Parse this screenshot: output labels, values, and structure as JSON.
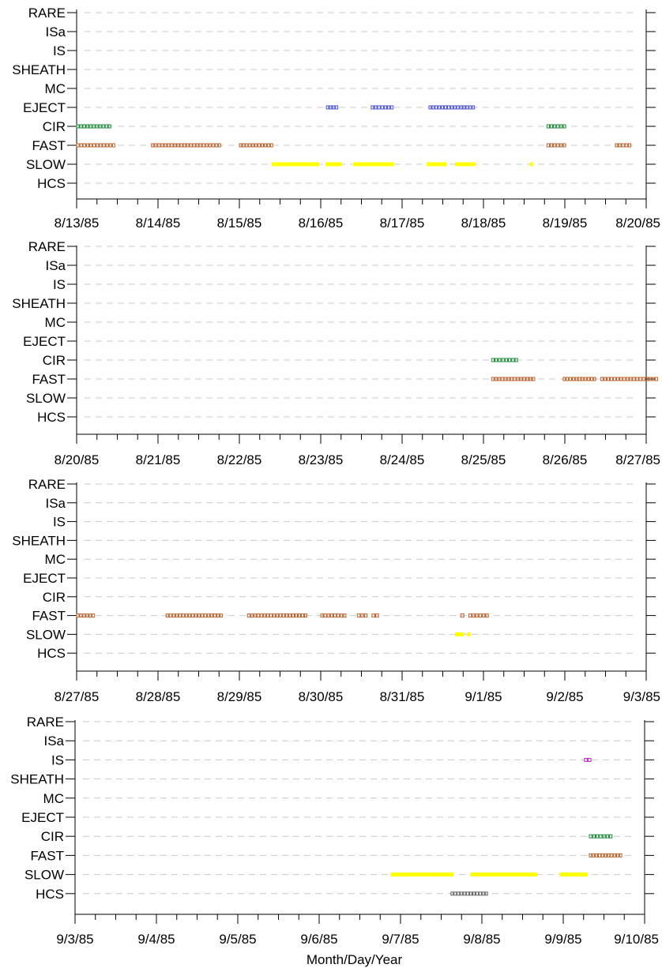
{
  "chart_data": [
    {
      "type": "timeline",
      "categories": [
        "RARE",
        "ISa",
        "IS",
        "SHEATH",
        "MC",
        "EJECT",
        "CIR",
        "FAST",
        "SLOW",
        "HCS"
      ],
      "x_ticks": [
        "8/13/85",
        "8/14/85",
        "8/15/85",
        "8/16/85",
        "8/17/85",
        "8/18/85",
        "8/19/85",
        "8/20/85"
      ],
      "xlim": [
        "8/13/85",
        "8/20/85"
      ],
      "grid": true,
      "events": [
        {
          "category": "EJECT",
          "start": 3.07,
          "end": 3.22
        },
        {
          "category": "EJECT",
          "start": 3.62,
          "end": 3.9
        },
        {
          "category": "EJECT",
          "start": 4.33,
          "end": 4.9
        },
        {
          "category": "CIR",
          "start": 0.0,
          "end": 0.43
        },
        {
          "category": "CIR",
          "start": 5.78,
          "end": 6.02
        },
        {
          "category": "FAST",
          "start": 0.0,
          "end": 0.48
        },
        {
          "category": "FAST",
          "start": 0.92,
          "end": 1.78
        },
        {
          "category": "FAST",
          "start": 2.0,
          "end": 2.42
        },
        {
          "category": "FAST",
          "start": 5.78,
          "end": 6.02
        },
        {
          "category": "FAST",
          "start": 6.62,
          "end": 6.82
        },
        {
          "category": "SLOW",
          "start": 2.4,
          "end": 2.98
        },
        {
          "category": "SLOW",
          "start": 3.06,
          "end": 3.26
        },
        {
          "category": "SLOW",
          "start": 3.4,
          "end": 3.9
        },
        {
          "category": "SLOW",
          "start": 4.3,
          "end": 4.55
        },
        {
          "category": "SLOW",
          "start": 4.65,
          "end": 4.9
        },
        {
          "category": "SLOW",
          "start": 5.57,
          "end": 5.61
        }
      ]
    },
    {
      "type": "timeline",
      "categories": [
        "RARE",
        "ISa",
        "IS",
        "SHEATH",
        "MC",
        "EJECT",
        "CIR",
        "FAST",
        "SLOW",
        "HCS"
      ],
      "x_ticks": [
        "8/20/85",
        "8/21/85",
        "8/22/85",
        "8/23/85",
        "8/24/85",
        "8/25/85",
        "8/26/85",
        "8/27/85"
      ],
      "xlim": [
        "8/20/85",
        "8/27/85"
      ],
      "grid": true,
      "events": [
        {
          "category": "CIR",
          "start": 5.1,
          "end": 5.43
        },
        {
          "category": "FAST",
          "start": 5.1,
          "end": 5.64
        },
        {
          "category": "FAST",
          "start": 5.98,
          "end": 6.39
        },
        {
          "category": "FAST",
          "start": 6.44,
          "end": 7.15
        }
      ]
    },
    {
      "type": "timeline",
      "categories": [
        "RARE",
        "ISa",
        "IS",
        "SHEATH",
        "MC",
        "EJECT",
        "CIR",
        "FAST",
        "SLOW",
        "HCS"
      ],
      "x_ticks": [
        "8/27/85",
        "8/28/85",
        "8/29/85",
        "8/30/85",
        "8/31/85",
        "9/1/85",
        "9/2/85",
        "9/3/85"
      ],
      "xlim": [
        "8/27/85",
        "9/3/85"
      ],
      "grid": true,
      "events": [
        {
          "category": "FAST",
          "start": 0.0,
          "end": 0.23
        },
        {
          "category": "FAST",
          "start": 1.1,
          "end": 1.8
        },
        {
          "category": "FAST",
          "start": 2.1,
          "end": 2.84
        },
        {
          "category": "FAST",
          "start": 3.0,
          "end": 3.32
        },
        {
          "category": "FAST",
          "start": 3.45,
          "end": 3.58
        },
        {
          "category": "FAST",
          "start": 3.63,
          "end": 3.72
        },
        {
          "category": "FAST",
          "start": 4.72,
          "end": 4.77
        },
        {
          "category": "FAST",
          "start": 4.82,
          "end": 5.07
        },
        {
          "category": "SLOW",
          "start": 4.65,
          "end": 4.76
        },
        {
          "category": "SLOW",
          "start": 4.8,
          "end": 4.84
        }
      ]
    },
    {
      "type": "timeline",
      "categories": [
        "RARE",
        "ISa",
        "IS",
        "SHEATH",
        "MC",
        "EJECT",
        "CIR",
        "FAST",
        "SLOW",
        "HCS"
      ],
      "x_ticks": [
        "9/3/85",
        "9/4/85",
        "9/5/85",
        "9/6/85",
        "9/7/85",
        "9/8/85",
        "9/9/85",
        "9/10/85"
      ],
      "xlim": [
        "9/3/85",
        "9/10/85"
      ],
      "xlabel": "Month/Day/Year",
      "grid": true,
      "events": [
        {
          "category": "IS",
          "start": 6.26,
          "end": 6.35
        },
        {
          "category": "CIR",
          "start": 6.32,
          "end": 6.61
        },
        {
          "category": "FAST",
          "start": 6.32,
          "end": 6.73
        },
        {
          "category": "SLOW",
          "start": 3.88,
          "end": 4.65
        },
        {
          "category": "SLOW",
          "start": 4.86,
          "end": 5.68
        },
        {
          "category": "SLOW",
          "start": 5.96,
          "end": 6.3
        },
        {
          "category": "HCS",
          "start": 4.62,
          "end": 5.08
        }
      ]
    }
  ],
  "styles": {
    "EJECT": "#4a50d0",
    "CIR": "#1a8a3a",
    "FAST": "#b8602a",
    "SLOW": "#ffff00",
    "IS": "#c020c0",
    "default": "#666666",
    "grid": "#c8c8c8",
    "axis": "#000000"
  }
}
